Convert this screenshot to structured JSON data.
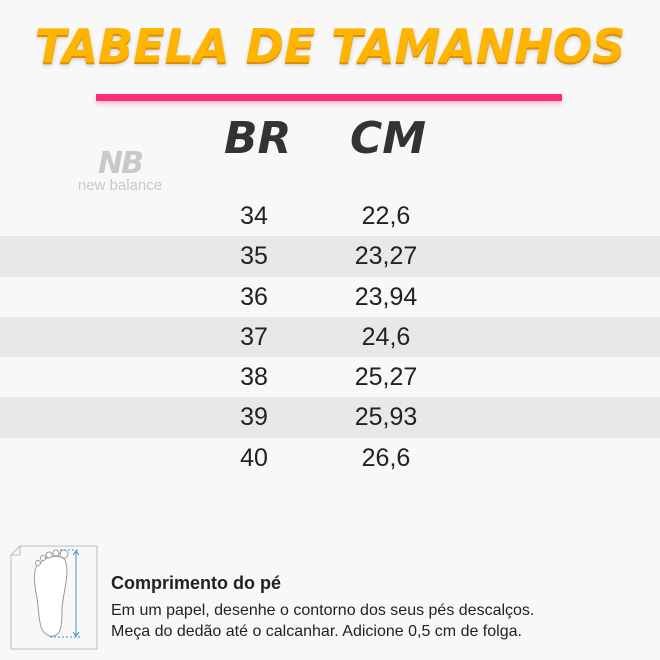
{
  "title": "TABELA DE TAMANHOS",
  "brand": {
    "monogram": "NB",
    "name": "new balance"
  },
  "columns": {
    "br": "BR",
    "cm": "CM"
  },
  "rows": [
    {
      "br": "34",
      "cm": "22,6"
    },
    {
      "br": "35",
      "cm": "23,27"
    },
    {
      "br": "36",
      "cm": "23,94"
    },
    {
      "br": "37",
      "cm": "24,6"
    },
    {
      "br": "38",
      "cm": "25,27"
    },
    {
      "br": "39",
      "cm": "25,93"
    },
    {
      "br": "40",
      "cm": "26,6"
    }
  ],
  "instructions": {
    "title": "Comprimento do pé",
    "line1": "Em um papel, desenhe o contorno dos seus pés descalços.",
    "line2": "Meça do dedão até o calcanhar. Adicione 0,5 cm de folga."
  },
  "colors": {
    "title": "#ffb400",
    "accent_bar": "#ff2e72",
    "stripe": "#e8e8e8",
    "measure_arrow": "#3a8fd0"
  }
}
